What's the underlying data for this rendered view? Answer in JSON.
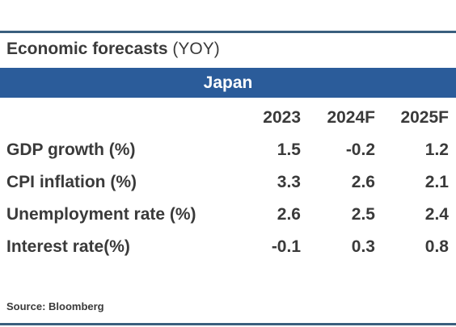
{
  "table": {
    "title": "Economic forecasts",
    "title_suffix": "(YOY)",
    "country": "Japan",
    "columns": [
      "2023",
      "2024F",
      "2025F"
    ],
    "rows": [
      {
        "label": "GDP growth (%)",
        "values": [
          "1.5",
          "-0.2",
          "1.2"
        ]
      },
      {
        "label": "CPI inflation (%)",
        "values": [
          "3.3",
          "2.6",
          "2.1"
        ]
      },
      {
        "label": "Unemployment rate (%)",
        "values": [
          "2.6",
          "2.5",
          "2.4"
        ]
      },
      {
        "label": "Interest rate(%)",
        "values": [
          "-0.1",
          "0.3",
          "0.8"
        ]
      }
    ],
    "source": "Source: Bloomberg",
    "colors": {
      "header_bar": "#2b5c9a",
      "rule": "#3a5f7e",
      "text": "#3a3a3a"
    }
  }
}
